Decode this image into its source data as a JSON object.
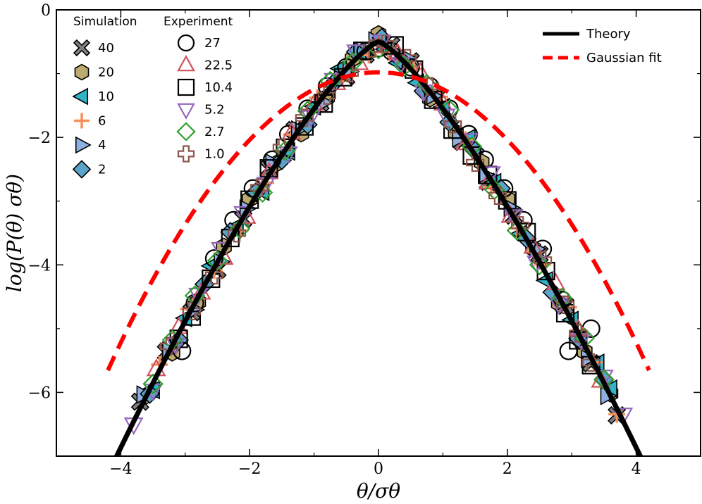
{
  "chart_data": {
    "type": "scatter",
    "xlabel": "θ/σθ",
    "ylabel": "log(P(θ) σθ)",
    "xlim": [
      -5,
      5
    ],
    "ylim": [
      -7,
      0
    ],
    "x_ticks": [
      -4,
      -2,
      0,
      2,
      4
    ],
    "x_tick_labels": [
      "−4",
      "−2",
      "0",
      "2",
      "4"
    ],
    "y_ticks": [
      0,
      -2,
      -4,
      -6
    ],
    "y_tick_labels": [
      "0",
      "−2",
      "−4",
      "−6"
    ],
    "grid": false,
    "legends": [
      {
        "title": "Simulation",
        "placement": "top-left",
        "entries": [
          {
            "label": "40",
            "marker": "x-filled",
            "color": "#7f7f7f"
          },
          {
            "label": "20",
            "marker": "hexagon",
            "color": "#bcaa6e"
          },
          {
            "label": "10",
            "marker": "triangle-left",
            "color": "#2fb4c8"
          },
          {
            "label": "6",
            "marker": "plus",
            "color": "#f5905a"
          },
          {
            "label": "4",
            "marker": "triangle-right",
            "color": "#8eb0e0"
          },
          {
            "label": "2",
            "marker": "diamond",
            "color": "#5ba3c8"
          }
        ]
      },
      {
        "title": "Experiment",
        "placement": "top-left",
        "entries": [
          {
            "label": "27",
            "marker": "circle-open",
            "color": "#000000"
          },
          {
            "label": "22.5",
            "marker": "triangle-up-open",
            "color": "#d0505a"
          },
          {
            "label": "10.4",
            "marker": "square-open",
            "color": "#000000"
          },
          {
            "label": "5.2",
            "marker": "triangle-down-open",
            "color": "#9467bd"
          },
          {
            "label": "2.7",
            "marker": "diamond-open",
            "color": "#2ca02c"
          },
          {
            "label": "1.0",
            "marker": "plus-open",
            "color": "#8c564b"
          }
        ]
      },
      {
        "title": "",
        "placement": "top-right",
        "entries": [
          {
            "label": "Theory",
            "line": "solid",
            "color": "#000000"
          },
          {
            "label": "Gaussian fit",
            "line": "dashed",
            "color": "#ff0000"
          }
        ]
      }
    ],
    "curves": [
      {
        "name": "Theory",
        "style": "solid",
        "color": "#000000",
        "function": "theory"
      },
      {
        "name": "Gaussian fit",
        "style": "dashed",
        "color": "#ff0000",
        "function": "gaussian"
      }
    ],
    "marker_series": [
      {
        "marker": "x-filled",
        "color": "#7f7f7f",
        "x": [
          -3.7,
          -3.3,
          -2.9,
          -2.5,
          -2.1,
          -1.7,
          -1.3,
          -0.9,
          -0.5,
          -0.2,
          0.2,
          0.5,
          0.9,
          1.3,
          1.7,
          2.1,
          2.5,
          2.9,
          3.3,
          3.7
        ]
      },
      {
        "marker": "hexagon",
        "color": "#bcaa6e",
        "x": [
          -3.6,
          -3.2,
          -2.8,
          -2.4,
          -2.0,
          -1.6,
          -1.2,
          -0.8,
          -0.4,
          0.0,
          0.4,
          0.8,
          1.2,
          1.6,
          2.0,
          2.4,
          2.8,
          3.2,
          3.6
        ]
      },
      {
        "marker": "triangle-left",
        "color": "#2fb4c8",
        "x": [
          -3.5,
          -3.0,
          -2.6,
          -2.2,
          -1.8,
          -1.4,
          -1.0,
          -0.6,
          -0.3,
          0.1,
          0.3,
          0.6,
          1.0,
          1.4,
          1.8,
          2.2,
          2.6,
          3.0,
          3.4,
          3.6
        ]
      },
      {
        "marker": "plus",
        "color": "#f5905a",
        "x": [
          -3.4,
          -2.95,
          -2.55,
          -2.15,
          -1.75,
          -1.35,
          -0.95,
          -0.55,
          -0.15,
          0.15,
          0.55,
          0.95,
          1.35,
          1.75,
          2.15,
          2.55,
          2.95,
          3.35,
          3.7
        ]
      },
      {
        "marker": "triangle-right",
        "color": "#8eb0e0",
        "x": [
          -3.65,
          -3.25,
          -2.85,
          -2.45,
          -2.05,
          -1.65,
          -1.25,
          -0.85,
          -0.45,
          -0.05,
          0.45,
          0.85,
          1.25,
          1.65,
          2.05,
          2.45,
          2.85,
          3.25,
          3.55
        ]
      },
      {
        "marker": "diamond",
        "color": "#5ba3c8",
        "x": [
          -3.55,
          -3.1,
          -2.7,
          -2.3,
          -1.9,
          -1.5,
          -1.1,
          -0.7,
          -0.35,
          0.05,
          0.35,
          0.7,
          1.1,
          1.5,
          1.9,
          2.3,
          2.7,
          3.1,
          3.5
        ]
      },
      {
        "marker": "circle-open",
        "color": "#000000",
        "x": [
          -3.05,
          -2.85,
          -2.55,
          -2.25,
          -1.95,
          -1.65,
          -1.4,
          -1.1,
          -0.8,
          -0.5,
          -0.2,
          0.0,
          0.2,
          0.5,
          0.8,
          1.1,
          1.4,
          1.65,
          1.95,
          2.25,
          2.55,
          2.85,
          2.95,
          3.3
        ],
        "y": [
          -5.35,
          -4.6,
          -3.9,
          -3.3,
          -2.8,
          -2.35,
          -1.95,
          -1.55,
          -1.2,
          -0.9,
          -0.65,
          -0.6,
          -0.65,
          -0.9,
          -1.2,
          -1.55,
          -1.95,
          -2.35,
          -2.8,
          -3.3,
          -3.75,
          -4.55,
          -5.35,
          -5.0
        ]
      },
      {
        "marker": "triangle-up-open",
        "color": "#d0505a",
        "x": [
          -3.45,
          -3.1,
          -2.75,
          -2.4,
          -2.05,
          -1.7,
          -1.35,
          -1.0,
          -0.65,
          -0.3,
          0.0,
          0.3,
          0.65,
          1.0,
          1.35,
          1.7,
          2.05,
          2.4,
          2.75,
          3.1,
          3.45
        ]
      },
      {
        "marker": "square-open",
        "color": "#000000",
        "x": [
          -3.1,
          -2.9,
          -2.6,
          -2.3,
          -2.0,
          -1.7,
          -1.45,
          -1.15,
          -0.85,
          -0.55,
          -0.25,
          0.25,
          0.55,
          0.85,
          1.15,
          1.45,
          1.7,
          2.0,
          2.3,
          2.6,
          2.9,
          3.1,
          3.3
        ]
      },
      {
        "marker": "triangle-down-open",
        "color": "#9467bd",
        "x": [
          -3.8,
          -3.5,
          -3.15,
          -2.8,
          -2.45,
          -2.1,
          -1.75,
          -1.4,
          -1.05,
          -0.7,
          -0.35,
          0.05,
          0.35,
          0.7,
          1.05,
          1.4,
          1.75,
          2.1,
          2.45,
          2.8,
          3.15,
          3.5,
          3.8
        ]
      },
      {
        "marker": "diamond-open",
        "color": "#2ca02c",
        "x": [
          -3.5,
          -3.2,
          -2.85,
          -2.5,
          -2.15,
          -1.8,
          -1.45,
          -1.1,
          -0.75,
          -0.4,
          0.0,
          0.4,
          0.75,
          1.1,
          1.45,
          1.8,
          2.15,
          2.5,
          2.85,
          3.2,
          3.5
        ]
      },
      {
        "marker": "plus-open",
        "color": "#8c564b",
        "x": [
          -3.25,
          -2.9,
          -2.55,
          -2.2,
          -1.85,
          -1.5,
          -1.15,
          -0.8,
          -0.45,
          -0.1,
          0.1,
          0.45,
          0.8,
          1.15,
          1.5,
          1.85,
          2.2,
          2.55,
          2.9,
          3.1,
          3.3
        ]
      }
    ]
  }
}
